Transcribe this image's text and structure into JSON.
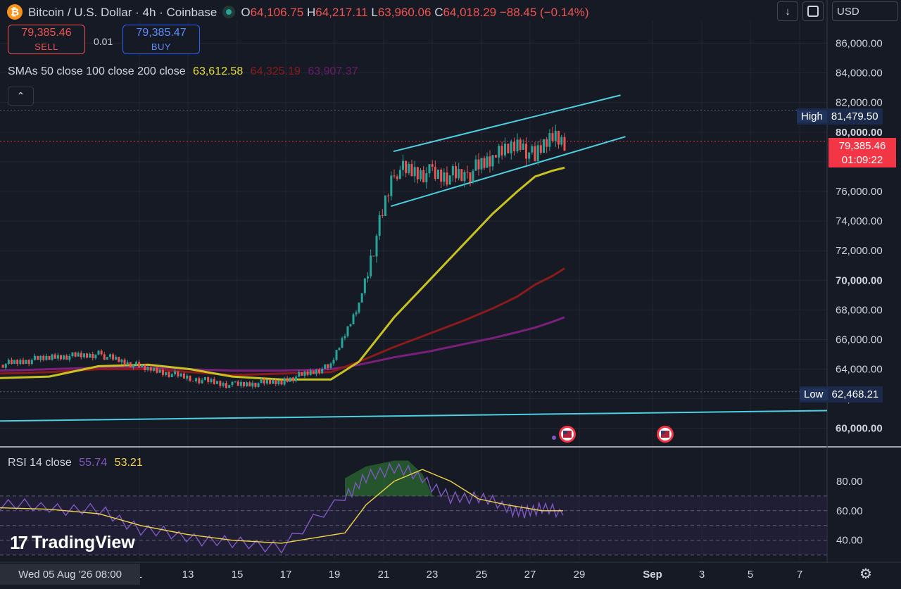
{
  "header": {
    "symbol": "Bitcoin / U.S. Dollar · 4h · Coinbase",
    "o_label": "O",
    "o_value": "64,106.75",
    "h_label": "H",
    "h_value": "64,217.11",
    "l_label": "L",
    "l_value": "63,960.06",
    "c_label": "C",
    "c_value": "64,018.29",
    "change": "−88.45 (−0.14%)",
    "currency": "USD"
  },
  "trade": {
    "sell_price": "79,385.46",
    "sell_label": "SELL",
    "spread": "0.01",
    "buy_price": "79,385.47",
    "buy_label": "BUY"
  },
  "sma": {
    "label": "SMAs 50 close 100 close 200 close",
    "v50": "63,612.58",
    "v100": "64,325.19",
    "v200": "63,907.37",
    "colors": {
      "sma50": "#c9c320",
      "sma100": "#8b1a1a",
      "sma200": "#7b1f7b"
    }
  },
  "rsi": {
    "label": "RSI 14 close",
    "value": "55.74",
    "ma": "53.21",
    "colors": {
      "rsi": "#7e57c2",
      "ma": "#f0d34a"
    }
  },
  "price_axis": {
    "ticks": [
      "86,000.00",
      "84,000.00",
      "82,000.00",
      "80,000.00",
      "78,000.00",
      "76,000.00",
      "74,000.00",
      "72,000.00",
      "70,000.00",
      "68,000.00",
      "66,000.00",
      "64,000.00",
      "62,000.00",
      "60,000.00"
    ],
    "high_label": "High",
    "high_value": "81,479.50",
    "low_label": "Low",
    "low_value": "62,468.21",
    "last_price": "79,385.46",
    "countdown": "01:09:22"
  },
  "rsi_axis": {
    "ticks": [
      "80.00",
      "60.00",
      "40.00"
    ]
  },
  "time_axis": {
    "cursor_label": "Wed 05 Aug '26   08:00",
    "ticks": [
      "1",
      "13",
      "15",
      "17",
      "19",
      "21",
      "23",
      "25",
      "27",
      "29",
      "Sep",
      "3",
      "5",
      "7"
    ]
  },
  "branding": {
    "logo_text": "TradingView"
  },
  "chart_data": {
    "type": "candlestick",
    "interval": "4h",
    "ylim": [
      58800,
      87500
    ],
    "rsi_ylim": [
      27,
      99
    ],
    "x": [
      "Aug 05",
      "Aug 07",
      "Aug 09",
      "Aug 11",
      "Aug 13",
      "Aug 15",
      "Aug 17",
      "Aug 19",
      "Aug 20",
      "Aug 21",
      "Aug 22",
      "Aug 23",
      "Aug 24",
      "Aug 25",
      "Aug 26",
      "Aug 27",
      "Aug 28"
    ],
    "close": [
      64300,
      64800,
      65000,
      64000,
      63400,
      62900,
      63200,
      64200,
      68500,
      77500,
      77200,
      77000,
      78300,
      79500,
      78200,
      79900,
      79385
    ],
    "high": 81479.5,
    "low": 62468.21,
    "sma50": [
      63400,
      63500,
      64200,
      64300,
      64000,
      63500,
      63300,
      63300,
      64500,
      67500,
      70000,
      72500,
      74500,
      76000,
      77000,
      77400,
      77600
    ],
    "sma100": [
      63700,
      63800,
      64000,
      64000,
      63800,
      63600,
      63700,
      63800,
      64500,
      65500,
      66400,
      67300,
      68100,
      68900,
      69700,
      70300,
      70800
    ],
    "sma200": [
      63900,
      64000,
      64100,
      64100,
      64000,
      63900,
      63900,
      64000,
      64300,
      64800,
      65200,
      65700,
      66100,
      66500,
      66800,
      67200,
      67500
    ],
    "channel_upper": [
      [
        21.4,
        78700
      ],
      [
        30.7,
        82500
      ]
    ],
    "channel_lower": [
      [
        21.3,
        75000
      ],
      [
        30.9,
        79700
      ]
    ],
    "trendline": [
      [
        4.0,
        60500
      ],
      [
        34.4,
        61200
      ]
    ],
    "rsi_values": [
      65,
      62,
      60,
      48,
      42,
      38,
      36,
      70,
      82,
      90,
      82,
      68,
      70,
      62,
      58,
      63,
      57
    ],
    "rsi_ma": [
      62,
      61,
      58,
      50,
      44,
      40,
      38,
      45,
      64,
      80,
      88,
      80,
      68,
      64,
      62,
      60,
      60
    ],
    "rsi_bands": [
      70,
      60,
      50,
      40,
      30
    ]
  }
}
